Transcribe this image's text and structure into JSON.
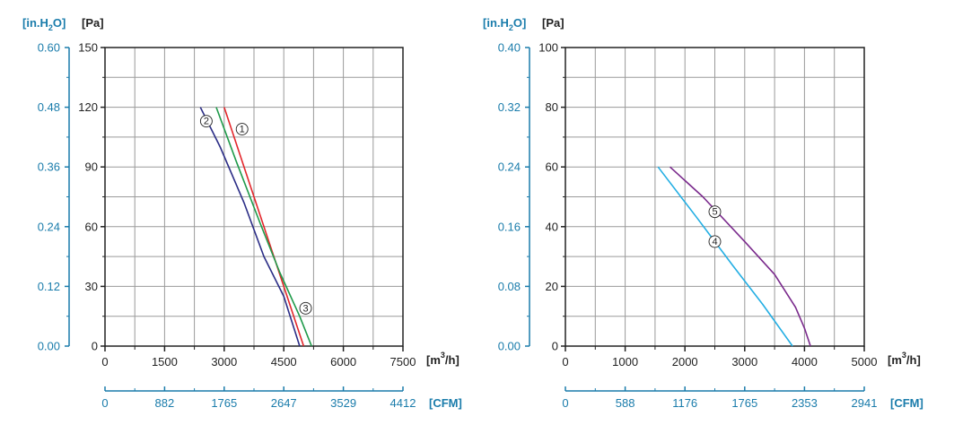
{
  "colors": {
    "grid": "#9a9a9a",
    "axis": "#222222",
    "alt_axis": "#1a7cab",
    "curve_1": "#e3262b",
    "curve_2": "#2b2d86",
    "curve_3": "#1f9a4a",
    "curve_4": "#23aee3",
    "curve_5": "#7a2a8c"
  },
  "chart_data": [
    {
      "type": "line",
      "title": "",
      "ylabel": "[Pa]",
      "ylabel_alt": "[in.H2O]",
      "xlabel": "[m3/h]",
      "xlabel_alt": "[CFM]",
      "xlim": [
        0,
        7500
      ],
      "ylim": [
        0,
        150
      ],
      "x_ticks": [
        "0",
        "1500",
        "3000",
        "4500",
        "6000",
        "7500"
      ],
      "x_alt_ticks": [
        "0",
        "882",
        "1765",
        "2647",
        "3529",
        "4412"
      ],
      "y_ticks": [
        "0",
        "30",
        "60",
        "90",
        "120",
        "150"
      ],
      "y_alt_ticks": [
        "0.00",
        "0.12",
        "0.24",
        "0.36",
        "0.48",
        "0.60"
      ],
      "grid": true,
      "series": [
        {
          "name": "1",
          "label": "①",
          "label_at": [
            3450,
            109
          ],
          "x": [
            3000,
            3500,
            4000,
            4500,
            4800,
            5000
          ],
          "y": [
            120,
            90,
            60,
            30,
            12,
            0
          ]
        },
        {
          "name": "2",
          "label": "②",
          "label_at": [
            2550,
            113
          ],
          "x": [
            2400,
            2900,
            3500,
            4000,
            4500,
            4900
          ],
          "y": [
            120,
            100,
            72,
            45,
            25,
            0
          ]
        },
        {
          "name": "3",
          "label": "③",
          "label_at": [
            5050,
            19
          ],
          "x": [
            2800,
            3300,
            3900,
            4400,
            4900,
            5200
          ],
          "y": [
            120,
            93,
            62,
            37,
            15,
            0
          ]
        }
      ]
    },
    {
      "type": "line",
      "title": "",
      "ylabel": "[Pa]",
      "ylabel_alt": "[in.H2O]",
      "xlabel": "[m3/h]",
      "xlabel_alt": "[CFM]",
      "xlim": [
        0,
        5000
      ],
      "ylim": [
        0,
        100
      ],
      "x_ticks": [
        "0",
        "1000",
        "2000",
        "3000",
        "4000",
        "5000"
      ],
      "x_alt_ticks": [
        "0",
        "588",
        "1176",
        "1765",
        "2353",
        "2941"
      ],
      "y_ticks": [
        "0",
        "20",
        "40",
        "60",
        "80",
        "100"
      ],
      "y_alt_ticks": [
        "0.00",
        "0.08",
        "0.16",
        "0.24",
        "0.32",
        "0.40"
      ],
      "grid": true,
      "series": [
        {
          "name": "4",
          "label": "④",
          "label_at": [
            2500,
            35
          ],
          "x": [
            1550,
            2200,
            2800,
            3300,
            3800
          ],
          "y": [
            60,
            43,
            27,
            14,
            0
          ]
        },
        {
          "name": "5",
          "label": "⑤",
          "label_at": [
            2500,
            45
          ],
          "x": [
            1750,
            2300,
            3000,
            3500,
            3850,
            4000,
            4100
          ],
          "y": [
            60,
            50,
            35,
            24,
            13,
            6,
            0
          ]
        }
      ]
    }
  ]
}
